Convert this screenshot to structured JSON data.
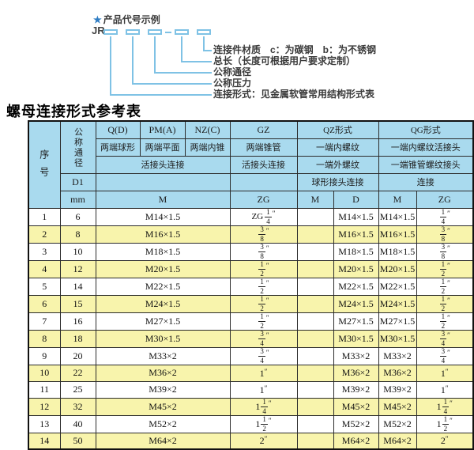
{
  "colors": {
    "header_bg": "#a9daee",
    "row_alt_bg": "#f8f4ac",
    "border": "#2b2b2b",
    "line_blue": "#7fc2e5",
    "star_blue": "#2e7cc3",
    "text_dark": "#3a3a3a"
  },
  "diagram": {
    "star": "★",
    "heading": "产品代号示例",
    "code_prefix": "JR",
    "labels": [
      "连接件材质　c：为碳钢　b：为不锈钢",
      "总长（长度可根据用户要求定制）",
      "公称通径",
      "公称压力",
      "连接形式：见金属软管常用结构形式表"
    ]
  },
  "table": {
    "title": "螺母连接形式参考表",
    "header": {
      "col_no": "序号",
      "col_dn": "公称通径",
      "d1": "D1",
      "mm": "mm",
      "types": [
        "Q(D)",
        "PM(A)",
        "NZ(C)",
        "GZ",
        "QZ形式",
        "QG形式"
      ],
      "desc_row2": [
        "两端球形",
        "两端平面",
        "两端内锥",
        "两端锥管",
        "一端内螺纹",
        "一端内螺纹活接头"
      ],
      "desc_row3": [
        "活接头连接",
        "活接头连接",
        "一端外螺纹",
        "一端锥管螺纹接头"
      ],
      "desc_row4": [
        "球形接头连接",
        "连接"
      ],
      "units_row": [
        "M",
        "ZG",
        "M",
        "D",
        "M",
        "ZG"
      ]
    },
    "rows": [
      {
        "no": "1",
        "dn": "6",
        "m": "M14×1.5",
        "gz": {
          "pre": "ZG",
          "n": "1",
          "d": "4"
        },
        "qz_m": "",
        "qz_d": "M14×1.5",
        "qg_m": "M14×1.5",
        "qg_zg": {
          "n": "1",
          "d": "4"
        }
      },
      {
        "no": "2",
        "dn": "8",
        "m": "M16×1.5",
        "gz": {
          "n": "3",
          "d": "8"
        },
        "qz_m": "",
        "qz_d": "M16×1.5",
        "qg_m": "M16×1.5",
        "qg_zg": {
          "n": "3",
          "d": "8"
        }
      },
      {
        "no": "3",
        "dn": "10",
        "m": "M18×1.5",
        "gz": {
          "n": "3",
          "d": "8"
        },
        "qz_m": "",
        "qz_d": "M18×1.5",
        "qg_m": "M18×1.5",
        "qg_zg": {
          "n": "3",
          "d": "8"
        }
      },
      {
        "no": "4",
        "dn": "12",
        "m": "M20×1.5",
        "gz": {
          "n": "1",
          "d": "2"
        },
        "qz_m": "",
        "qz_d": "M20×1.5",
        "qg_m": "M20×1.5",
        "qg_zg": {
          "n": "1",
          "d": "2"
        }
      },
      {
        "no": "5",
        "dn": "14",
        "m": "M22×1.5",
        "gz": {
          "n": "1",
          "d": "2"
        },
        "qz_m": "",
        "qz_d": "M22×1.5",
        "qg_m": "M22×1.5",
        "qg_zg": {
          "n": "1",
          "d": "2"
        }
      },
      {
        "no": "6",
        "dn": "15",
        "m": "M24×1.5",
        "gz": {
          "n": "1",
          "d": "2"
        },
        "qz_m": "",
        "qz_d": "M24×1.5",
        "qg_m": "M24×1.5",
        "qg_zg": {
          "n": "1",
          "d": "2"
        }
      },
      {
        "no": "7",
        "dn": "16",
        "m": "M27×1.5",
        "gz": {
          "n": "1",
          "d": "2"
        },
        "qz_m": "",
        "qz_d": "M27×1.5",
        "qg_m": "M27×1.5",
        "qg_zg": {
          "n": "1",
          "d": "2"
        }
      },
      {
        "no": "8",
        "dn": "18",
        "m": "M30×1.5",
        "gz": {
          "n": "3",
          "d": "4"
        },
        "qz_m": "",
        "qz_d": "M30×1.5",
        "qg_m": "M30×1.5",
        "qg_zg": {
          "n": "3",
          "d": "4"
        }
      },
      {
        "no": "9",
        "dn": "20",
        "m": "M33×2",
        "gz": {
          "n": "3",
          "d": "4"
        },
        "qz_m": "",
        "qz_d": "M33×2",
        "qg_m": "M33×2",
        "qg_zg": {
          "n": "3",
          "d": "4"
        }
      },
      {
        "no": "10",
        "dn": "22",
        "m": "M36×2",
        "gz": {
          "w": "1"
        },
        "qz_m": "",
        "qz_d": "M36×2",
        "qg_m": "M36×2",
        "qg_zg": {
          "w": "1"
        }
      },
      {
        "no": "11",
        "dn": "25",
        "m": "M39×2",
        "gz": {
          "w": "1"
        },
        "qz_m": "",
        "qz_d": "M39×2",
        "qg_m": "M39×2",
        "qg_zg": {
          "w": "1"
        }
      },
      {
        "no": "12",
        "dn": "32",
        "m": "M45×2",
        "gz": {
          "w": "1",
          "n": "1",
          "d": "4"
        },
        "qz_m": "",
        "qz_d": "M45×2",
        "qg_m": "M45×2",
        "qg_zg": {
          "w": "1",
          "n": "1",
          "d": "4"
        }
      },
      {
        "no": "13",
        "dn": "40",
        "m": "M52×2",
        "gz": {
          "w": "1",
          "n": "1",
          "d": "2"
        },
        "qz_m": "",
        "qz_d": "M52×2",
        "qg_m": "M52×2",
        "qg_zg": {
          "w": "1",
          "n": "1",
          "d": "2"
        }
      },
      {
        "no": "14",
        "dn": "50",
        "m": "M64×2",
        "gz": {
          "w": "2"
        },
        "qz_m": "",
        "qz_d": "M64×2",
        "qg_m": "M64×2",
        "qg_zg": {
          "w": "2"
        }
      }
    ]
  }
}
